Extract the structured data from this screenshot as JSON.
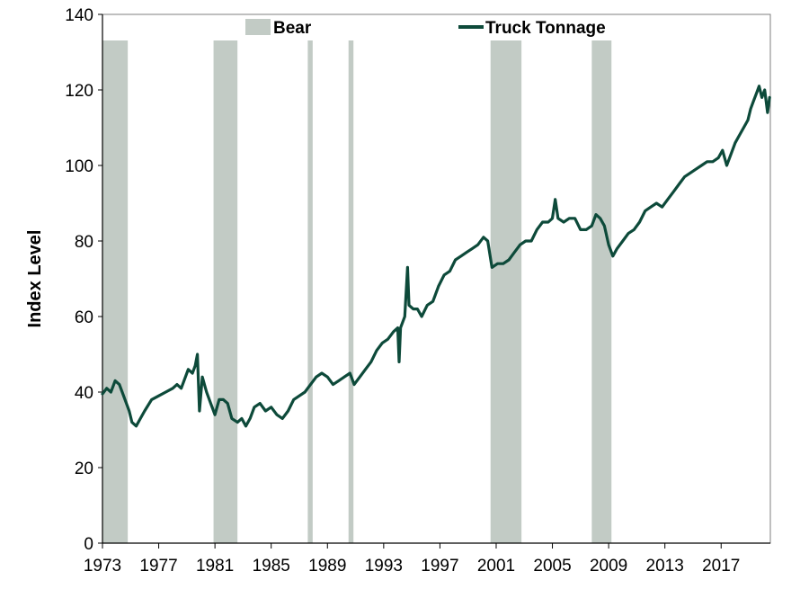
{
  "chart_data": {
    "type": "line",
    "title": "",
    "xlabel": "",
    "ylabel": "Index Level",
    "xlim": [
      1973.0,
      2020.5
    ],
    "ylim": [
      0,
      140
    ],
    "y_ticks": [
      0,
      20,
      40,
      60,
      80,
      100,
      120,
      140
    ],
    "x_ticks": [
      1973,
      1977,
      1981,
      1985,
      1989,
      1993,
      1997,
      2001,
      2005,
      2009,
      2013,
      2017
    ],
    "grid": false,
    "legend": {
      "placement": "top",
      "entries": [
        "Bear",
        "Truck Tonnage"
      ]
    },
    "colors": {
      "line": "#0d4a3a",
      "bear": "#c2cbc5",
      "axis": "#000000"
    },
    "bear_periods": [
      [
        1973.0,
        1974.8
      ],
      [
        1980.9,
        1982.6
      ],
      [
        1987.6,
        1987.95
      ],
      [
        1990.5,
        1990.85
      ],
      [
        2000.6,
        2002.8
      ],
      [
        2007.8,
        2009.2
      ]
    ],
    "series": [
      {
        "name": "Truck Tonnage",
        "x": [
          1973.0,
          1973.3,
          1973.6,
          1973.9,
          1974.2,
          1974.5,
          1974.9,
          1975.1,
          1975.4,
          1975.7,
          1976.0,
          1976.5,
          1977.0,
          1977.5,
          1978.0,
          1978.3,
          1978.6,
          1978.9,
          1979.1,
          1979.4,
          1979.6,
          1979.75,
          1979.9,
          1980.1,
          1980.4,
          1980.7,
          1981.0,
          1981.3,
          1981.6,
          1981.9,
          1982.2,
          1982.6,
          1982.9,
          1983.2,
          1983.5,
          1983.8,
          1984.2,
          1984.6,
          1985.0,
          1985.4,
          1985.8,
          1986.2,
          1986.6,
          1987.0,
          1987.4,
          1987.8,
          1988.2,
          1988.6,
          1989.0,
          1989.4,
          1989.8,
          1990.2,
          1990.6,
          1990.9,
          1991.3,
          1991.7,
          1992.1,
          1992.5,
          1992.9,
          1993.3,
          1993.7,
          1994.0,
          1994.1,
          1994.2,
          1994.5,
          1994.7,
          1994.8,
          1995.1,
          1995.4,
          1995.7,
          1996.1,
          1996.5,
          1996.9,
          1997.3,
          1997.7,
          1998.1,
          1998.5,
          1998.9,
          1999.3,
          1999.7,
          2000.1,
          2000.4,
          2000.7,
          2001.1,
          2001.5,
          2001.9,
          2002.3,
          2002.7,
          2003.1,
          2003.5,
          2003.9,
          2004.3,
          2004.7,
          2005.0,
          2005.2,
          2005.4,
          2005.8,
          2006.2,
          2006.6,
          2007.0,
          2007.4,
          2007.8,
          2008.1,
          2008.4,
          2008.7,
          2009.0,
          2009.3,
          2009.6,
          2010.0,
          2010.4,
          2010.8,
          2011.2,
          2011.6,
          2012.0,
          2012.4,
          2012.8,
          2013.2,
          2013.6,
          2014.0,
          2014.4,
          2014.8,
          2015.2,
          2015.6,
          2016.0,
          2016.4,
          2016.8,
          2017.1,
          2017.4,
          2017.7,
          2018.0,
          2018.3,
          2018.6,
          2018.9,
          2019.1,
          2019.3,
          2019.5,
          2019.7,
          2019.9,
          2020.1,
          2020.3,
          2020.45
        ],
        "values": [
          39.5,
          41,
          40,
          43,
          42,
          39,
          35,
          32,
          31,
          33,
          35,
          38,
          39,
          40,
          41,
          42,
          41,
          44,
          46,
          45,
          47,
          50,
          35,
          44,
          40,
          37,
          34,
          38,
          38,
          37,
          33,
          32,
          33,
          31,
          33,
          36,
          37,
          35,
          36,
          34,
          33,
          35,
          38,
          39,
          40,
          42,
          44,
          45,
          44,
          42,
          43,
          44,
          45,
          42,
          44,
          46,
          48,
          51,
          53,
          54,
          56,
          57,
          48,
          57,
          60,
          73,
          63,
          62,
          62,
          60,
          63,
          64,
          68,
          71,
          72,
          75,
          76,
          77,
          78,
          79,
          81,
          80,
          73,
          74,
          74,
          75,
          77,
          79,
          80,
          80,
          83,
          85,
          85,
          86,
          91,
          86,
          85,
          86,
          86,
          83,
          83,
          84,
          87,
          86,
          84,
          79,
          76,
          78,
          80,
          82,
          83,
          85,
          88,
          89,
          90,
          89,
          91,
          93,
          95,
          97,
          98,
          99,
          100,
          101,
          101,
          102,
          104,
          100,
          103,
          106,
          108,
          110,
          112,
          115,
          117,
          119,
          121,
          118,
          120,
          114,
          118
        ]
      }
    ]
  }
}
